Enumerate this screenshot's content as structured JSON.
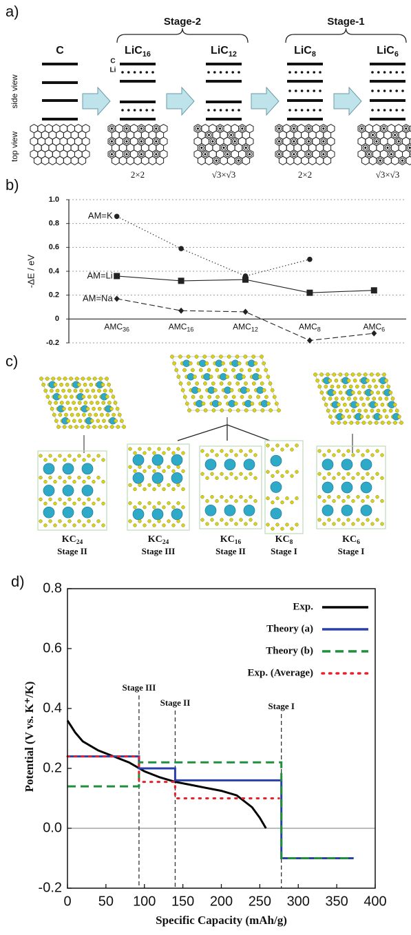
{
  "panel_a": {
    "label": "a)",
    "groups": [
      "Stage-2",
      "Stage-1"
    ],
    "row_labels": [
      "side view",
      "top view"
    ],
    "layer_labels": [
      "C",
      "Li"
    ],
    "columns": [
      {
        "formula": [
          "C"
        ]
      },
      {
        "formula": [
          "LiC",
          "16"
        ],
        "cell": "2×2"
      },
      {
        "formula": [
          "LiC",
          "12"
        ],
        "cell": "√3×√3"
      },
      {
        "formula": [
          "LiC",
          "8"
        ],
        "cell": "2×2"
      },
      {
        "formula": [
          "LiC",
          "6"
        ],
        "cell": "√3×√3"
      }
    ]
  },
  "panel_c": {
    "label": "c)",
    "structures": [
      {
        "formula": [
          "KC",
          "24"
        ],
        "stage": "Stage II"
      },
      {
        "formula": [
          "KC",
          "24"
        ],
        "stage": "Stage III"
      },
      {
        "formula": [
          "KC",
          "16"
        ],
        "stage": "Stage II"
      },
      {
        "formula": [
          "KC",
          "8"
        ],
        "stage": "Stage I"
      },
      {
        "formula": [
          "KC",
          "6"
        ],
        "stage": "Stage I"
      }
    ]
  },
  "chart_data": [
    {
      "type": "line",
      "title": "b)",
      "y_label": "-ΔE / eV",
      "categories": [
        [
          "AMC",
          "36"
        ],
        [
          "AMC",
          "16"
        ],
        [
          "AMC",
          "12"
        ],
        [
          "AMC",
          "8"
        ],
        [
          "AMC",
          "6"
        ]
      ],
      "series": [
        {
          "name": "AM=K",
          "color": "#222222",
          "marker": "circle",
          "dash": "dotted",
          "values": [
            0.86,
            0.59,
            0.36,
            0.5,
            null
          ]
        },
        {
          "name": "AM=Li",
          "color": "#222222",
          "marker": "square",
          "dash": "solid",
          "values": [
            0.36,
            0.32,
            0.33,
            0.22,
            0.24
          ]
        },
        {
          "name": "AM=Na",
          "color": "#222222",
          "marker": "diamond",
          "dash": "dashed",
          "values": [
            0.17,
            0.07,
            0.06,
            -0.18,
            -0.12
          ]
        }
      ],
      "ylim": [
        -0.2,
        1.0
      ],
      "yticks": [
        -0.2,
        0,
        0.2,
        0.4,
        0.6,
        0.8,
        {
          "value": 1.0,
          "label": "1.0"
        }
      ],
      "grid": true
    },
    {
      "type": "line",
      "title": "d)",
      "x_label": "Specific Capacity (mAh/g)",
      "y_label": "Potential (V vs. K⁺/K)",
      "xlim": [
        0,
        400
      ],
      "xticks": [
        0,
        50,
        100,
        150,
        200,
        250,
        300,
        350,
        400
      ],
      "ylim": [
        -0.2,
        0.8
      ],
      "yticks": [
        -0.2,
        {
          "value": 0.0,
          "label": "0.0"
        },
        0.2,
        0.4,
        0.6,
        0.8
      ],
      "legend": "upper right",
      "series": [
        {
          "name": "Exp.",
          "color": "#000000",
          "dash": "solid",
          "x": [
            0,
            10,
            20,
            40,
            60,
            80,
            100,
            120,
            140,
            160,
            180,
            200,
            220,
            240,
            250,
            258
          ],
          "values": [
            0.36,
            0.32,
            0.29,
            0.26,
            0.24,
            0.22,
            0.19,
            0.17,
            0.155,
            0.145,
            0.135,
            0.125,
            0.11,
            0.07,
            0.035,
            0
          ]
        },
        {
          "name": "Theory (a)",
          "color": "#2b3fa8",
          "dash": "solid",
          "x": [
            0,
            93,
            93,
            140,
            140,
            278,
            278,
            372
          ],
          "values": [
            0.24,
            0.24,
            0.2,
            0.2,
            0.16,
            0.16,
            -0.1,
            -0.1
          ]
        },
        {
          "name": "Theory (b)",
          "color": "#1e8f3a",
          "dash": "dashed",
          "x": [
            0,
            93,
            93,
            278,
            278,
            372
          ],
          "values": [
            0.14,
            0.14,
            0.22,
            0.22,
            -0.1,
            -0.1
          ]
        },
        {
          "name": "Exp. (Average)",
          "color": "#e8202a",
          "dash": "dotted",
          "x": [
            0,
            93,
            93,
            140,
            140,
            275
          ],
          "values": [
            0.24,
            0.24,
            0.155,
            0.155,
            0.1,
            0.1
          ]
        }
      ],
      "annotations": [
        {
          "text": "Stage III",
          "x": 93
        },
        {
          "text": "Stage II",
          "x": 140
        },
        {
          "text": "Stage I",
          "x": 278
        }
      ]
    }
  ]
}
